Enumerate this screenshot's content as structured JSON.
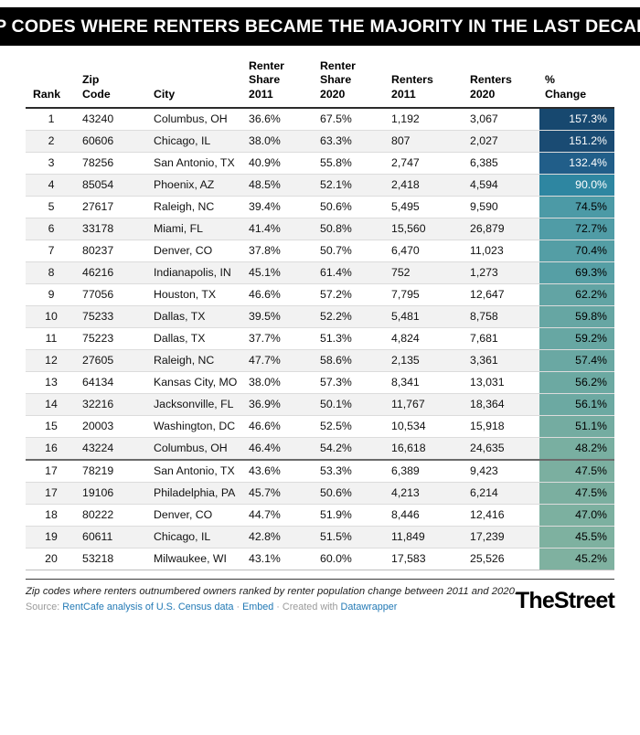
{
  "chart_data": {
    "type": "table",
    "title": "ZIP CODES WHERE RENTERS BECAME THE MAJORITY IN THE LAST DECADE",
    "columns": [
      "Rank",
      "Zip\nCode",
      "City",
      "Renter\nShare\n2011",
      "Renter\nShare\n2020",
      "Renters\n2011",
      "Renters\n2020",
      "%\nChange"
    ],
    "heat_column": "% Change",
    "heat_scale": {
      "min_value": "45.2%",
      "max_value": "157.3%",
      "low_color": "#7FB1A0",
      "high_color": "#17486F"
    },
    "rows": [
      {
        "rank": "1",
        "zip": "43240",
        "city": "Columbus, OH",
        "share_2011": "36.6%",
        "share_2020": "67.5%",
        "renters_2011": "1,192",
        "renters_2020": "3,067",
        "pct_change": "157.3%",
        "bg": "#17486F",
        "fg": "#ffffff"
      },
      {
        "rank": "2",
        "zip": "60606",
        "city": "Chicago, IL",
        "share_2011": "38.0%",
        "share_2020": "63.3%",
        "renters_2011": "807",
        "renters_2020": "2,027",
        "pct_change": "151.2%",
        "bg": "#1A4B73",
        "fg": "#ffffff"
      },
      {
        "rank": "3",
        "zip": "78256",
        "city": "San Antonio, TX",
        "share_2011": "40.9%",
        "share_2020": "55.8%",
        "renters_2011": "2,747",
        "renters_2020": "6,385",
        "pct_change": "132.4%",
        "bg": "#215E89",
        "fg": "#ffffff"
      },
      {
        "rank": "4",
        "zip": "85054",
        "city": "Phoenix, AZ",
        "share_2011": "48.5%",
        "share_2020": "52.1%",
        "renters_2011": "2,418",
        "renters_2020": "4,594",
        "pct_change": "90.0%",
        "bg": "#2E86A1",
        "fg": "#ffffff"
      },
      {
        "rank": "5",
        "zip": "27617",
        "city": "Raleigh, NC",
        "share_2011": "39.4%",
        "share_2020": "50.6%",
        "renters_2011": "5,495",
        "renters_2020": "9,590",
        "pct_change": "74.5%",
        "bg": "#4C9AA6",
        "fg": "#000000"
      },
      {
        "rank": "6",
        "zip": "33178",
        "city": "Miami, FL",
        "share_2011": "41.4%",
        "share_2020": "50.8%",
        "renters_2011": "15,560",
        "renters_2020": "26,879",
        "pct_change": "72.7%",
        "bg": "#509CA6",
        "fg": "#000000"
      },
      {
        "rank": "7",
        "zip": "80237",
        "city": "Denver, CO",
        "share_2011": "37.8%",
        "share_2020": "50.7%",
        "renters_2011": "6,470",
        "renters_2020": "11,023",
        "pct_change": "70.4%",
        "bg": "#549EA5",
        "fg": "#000000"
      },
      {
        "rank": "8",
        "zip": "46216",
        "city": "Indianapolis, IN",
        "share_2011": "45.1%",
        "share_2020": "61.4%",
        "renters_2011": "752",
        "renters_2020": "1,273",
        "pct_change": "69.3%",
        "bg": "#569FA5",
        "fg": "#000000"
      },
      {
        "rank": "9",
        "zip": "77056",
        "city": "Houston, TX",
        "share_2011": "46.6%",
        "share_2020": "57.2%",
        "renters_2011": "7,795",
        "renters_2020": "12,647",
        "pct_change": "62.2%",
        "bg": "#62A4A4",
        "fg": "#000000"
      },
      {
        "rank": "10",
        "zip": "75233",
        "city": "Dallas, TX",
        "share_2011": "39.5%",
        "share_2020": "52.2%",
        "renters_2011": "5,481",
        "renters_2020": "8,758",
        "pct_change": "59.8%",
        "bg": "#66A6A3",
        "fg": "#000000"
      },
      {
        "rank": "11",
        "zip": "75223",
        "city": "Dallas, TX",
        "share_2011": "37.7%",
        "share_2020": "51.3%",
        "renters_2011": "4,824",
        "renters_2020": "7,681",
        "pct_change": "59.2%",
        "bg": "#67A7A3",
        "fg": "#000000"
      },
      {
        "rank": "12",
        "zip": "27605",
        "city": "Raleigh, NC",
        "share_2011": "47.7%",
        "share_2020": "58.6%",
        "renters_2011": "2,135",
        "renters_2020": "3,361",
        "pct_change": "57.4%",
        "bg": "#6AA8A3",
        "fg": "#000000"
      },
      {
        "rank": "13",
        "zip": "64134",
        "city": "Kansas City, MO",
        "share_2011": "38.0%",
        "share_2020": "57.3%",
        "renters_2011": "8,341",
        "renters_2020": "13,031",
        "pct_change": "56.2%",
        "bg": "#6CA9A2",
        "fg": "#000000"
      },
      {
        "rank": "14",
        "zip": "32216",
        "city": "Jacksonville, FL",
        "share_2011": "36.9%",
        "share_2020": "50.1%",
        "renters_2011": "11,767",
        "renters_2020": "18,364",
        "pct_change": "56.1%",
        "bg": "#6CA9A2",
        "fg": "#000000"
      },
      {
        "rank": "15",
        "zip": "20003",
        "city": "Washington, DC",
        "share_2011": "46.6%",
        "share_2020": "52.5%",
        "renters_2011": "10,534",
        "renters_2020": "15,918",
        "pct_change": "51.1%",
        "bg": "#74ACA1",
        "fg": "#000000"
      },
      {
        "rank": "16",
        "zip": "43224",
        "city": "Columbus, OH",
        "share_2011": "46.4%",
        "share_2020": "54.2%",
        "renters_2011": "16,618",
        "renters_2020": "24,635",
        "pct_change": "48.2%",
        "bg": "#79AFA1",
        "fg": "#000000"
      },
      {
        "rank": "17",
        "zip": "78219",
        "city": "San Antonio, TX",
        "share_2011": "43.6%",
        "share_2020": "53.3%",
        "renters_2011": "6,389",
        "renters_2020": "9,423",
        "pct_change": "47.5%",
        "bg": "#7BAFA0",
        "fg": "#000000",
        "divider": true
      },
      {
        "rank": "17",
        "zip": "19106",
        "city": "Philadelphia, PA",
        "share_2011": "45.7%",
        "share_2020": "50.6%",
        "renters_2011": "4,213",
        "renters_2020": "6,214",
        "pct_change": "47.5%",
        "bg": "#7BAFA0",
        "fg": "#000000"
      },
      {
        "rank": "18",
        "zip": "80222",
        "city": "Denver, CO",
        "share_2011": "44.7%",
        "share_2020": "51.9%",
        "renters_2011": "8,446",
        "renters_2020": "12,416",
        "pct_change": "47.0%",
        "bg": "#7CB0A0",
        "fg": "#000000"
      },
      {
        "rank": "19",
        "zip": "60611",
        "city": "Chicago, IL",
        "share_2011": "42.8%",
        "share_2020": "51.5%",
        "renters_2011": "11,849",
        "renters_2020": "17,239",
        "pct_change": "45.5%",
        "bg": "#7EB1A0",
        "fg": "#000000"
      },
      {
        "rank": "20",
        "zip": "53218",
        "city": "Milwaukee, WI",
        "share_2011": "43.1%",
        "share_2020": "60.0%",
        "renters_2011": "17,583",
        "renters_2020": "25,526",
        "pct_change": "45.2%",
        "bg": "#7FB1A0",
        "fg": "#000000"
      }
    ]
  },
  "footer": {
    "note": "Zip codes where renters outnumbered owners ranked by renter population change between 2011 and 2020.",
    "source_label": "Source:",
    "source_link": "RentCafe analysis of U.S. Census data",
    "dot": "·",
    "embed_label": "Embed",
    "created_with": "Created with",
    "datawrapper_label": "Datawrapper",
    "brand": "TheStreet"
  },
  "colors": {
    "title_bar_bg": "#000000",
    "title_text": "#ffffff",
    "link": "#2279B5",
    "row_alt_bg": "#f2f2f2",
    "header_rule": "#2b2b2b"
  }
}
